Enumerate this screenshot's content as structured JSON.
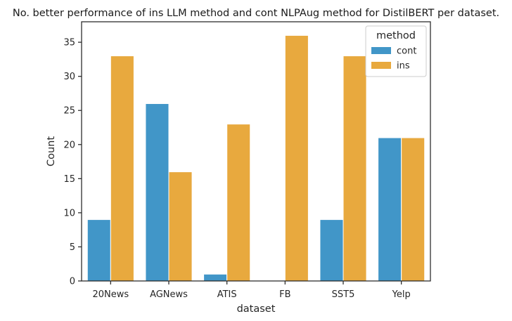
{
  "chart_data": {
    "type": "bar",
    "title": "No. better performance of ins LLM method and cont NLPAug method for DistilBERT per dataset.",
    "xlabel": "dataset",
    "ylabel": "Count",
    "categories": [
      "20News",
      "AGNews",
      "ATIS",
      "FB",
      "SST5",
      "Yelp"
    ],
    "series": [
      {
        "name": "cont",
        "color": "#4196c8",
        "values": [
          9,
          26,
          1,
          0,
          9,
          21
        ]
      },
      {
        "name": "ins",
        "color": "#e8a93e",
        "values": [
          33,
          16,
          23,
          36,
          33,
          21
        ]
      }
    ],
    "ylim": [
      0,
      38
    ],
    "yticks": [
      0,
      5,
      10,
      15,
      20,
      25,
      30,
      35
    ],
    "grid": false,
    "legend": {
      "title": "method",
      "placement": "top-right"
    }
  }
}
